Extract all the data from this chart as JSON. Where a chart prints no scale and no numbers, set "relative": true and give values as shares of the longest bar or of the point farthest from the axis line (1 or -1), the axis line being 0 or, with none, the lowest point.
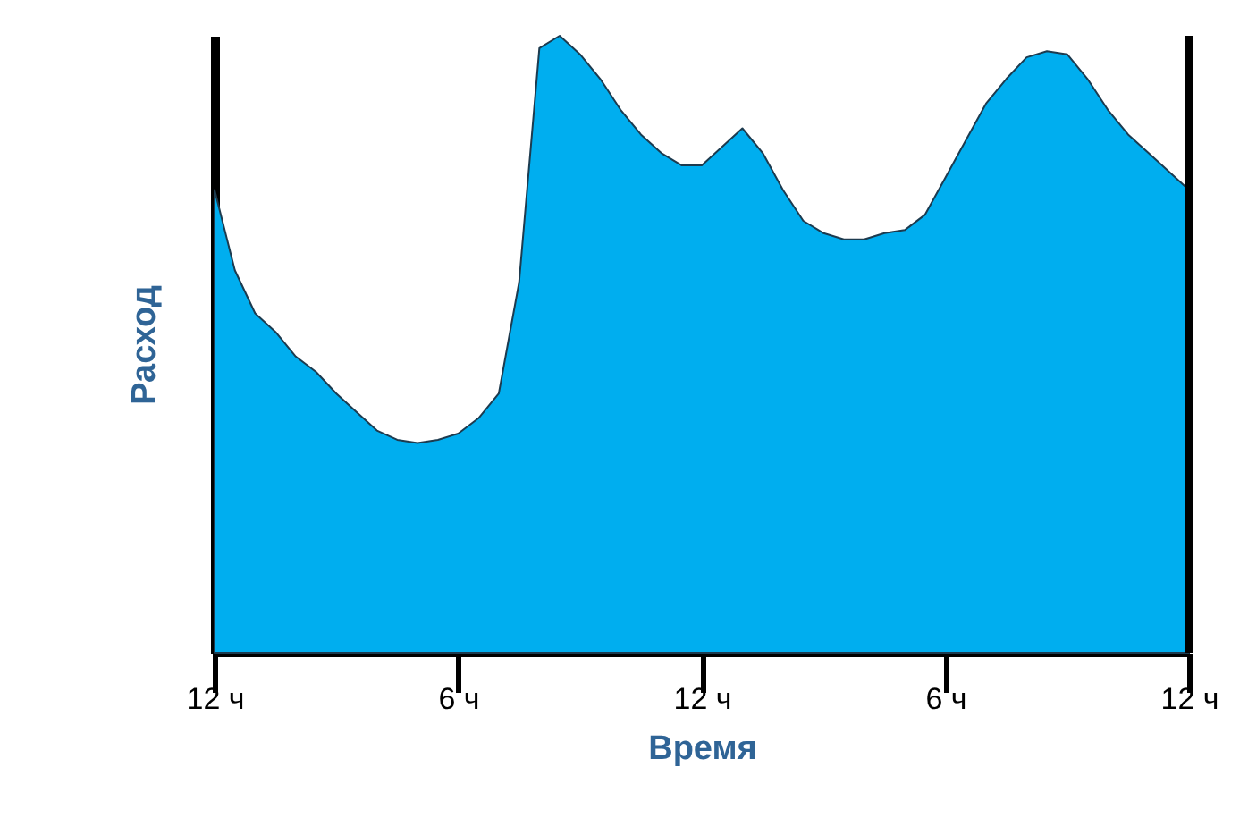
{
  "chart_data": {
    "type": "area",
    "relative": true,
    "xlabel": "Время",
    "ylabel": "Расход",
    "color": "#00aeef",
    "categories": [
      "12 ч",
      null,
      null,
      null,
      null,
      null,
      null,
      null,
      null,
      null,
      null,
      null,
      "6 ч",
      null,
      null,
      null,
      null,
      null,
      null,
      null,
      null,
      null,
      null,
      null,
      "12 ч",
      null,
      null,
      null,
      null,
      null,
      null,
      null,
      null,
      null,
      null,
      null,
      "6 ч",
      null,
      null,
      null,
      null,
      null,
      null,
      null,
      null,
      null,
      null,
      null,
      "12 ч"
    ],
    "values": [
      0.75,
      0.62,
      0.55,
      0.52,
      0.48,
      0.455,
      0.42,
      0.39,
      0.36,
      0.345,
      0.34,
      0.345,
      0.355,
      0.38,
      0.42,
      0.6,
      0.98,
      1.0,
      0.97,
      0.93,
      0.88,
      0.84,
      0.81,
      0.79,
      0.79,
      0.82,
      0.85,
      0.81,
      0.75,
      0.7,
      0.68,
      0.67,
      0.67,
      0.68,
      0.685,
      0.71,
      0.77,
      0.83,
      0.89,
      0.93,
      0.965,
      0.975,
      0.97,
      0.93,
      0.88,
      0.84,
      0.81,
      0.78,
      0.75
    ],
    "grid": false
  }
}
